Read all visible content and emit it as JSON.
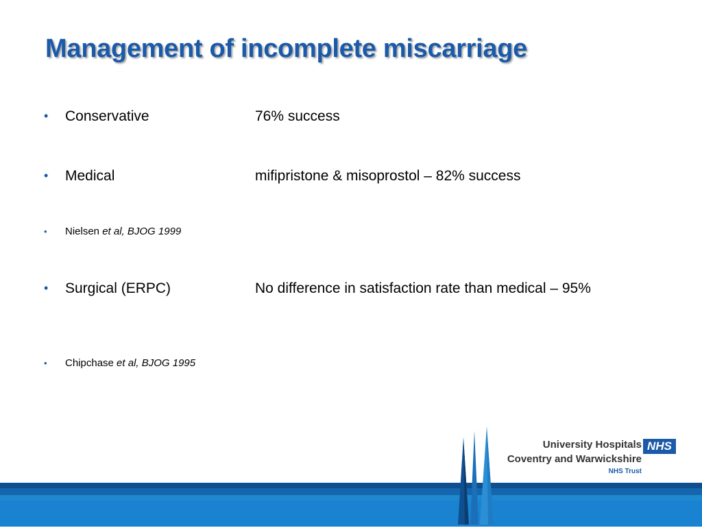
{
  "slide": {
    "title": "Management of incomplete miscarriage",
    "bullet_symbol": "•",
    "items": [
      {
        "label": "Conservative",
        "description": "76% success"
      },
      {
        "label": "Medical",
        "description": "mifipristone & misoprostol – 82% success"
      },
      {
        "reference_author": "Nielsen",
        "reference_rest": " et al, BJOG 1999"
      },
      {
        "label": "Surgical (ERPC)",
        "description": "No difference in satisfaction rate than medical – 95%"
      },
      {
        "reference_author": "Chipchase",
        "reference_rest": " et al, BJOG 1995"
      }
    ]
  },
  "logo": {
    "line1": "University Hospitals",
    "line2": "Coventry and Warwickshire",
    "line3": "NHS Trust",
    "badge": "NHS"
  },
  "colors": {
    "title": "#1a5aa8",
    "band_dark": "#0f4f8f",
    "band_mid": "#1566ad",
    "band_light": "#1a83d1",
    "nhs_blue": "#1a5aa8"
  }
}
